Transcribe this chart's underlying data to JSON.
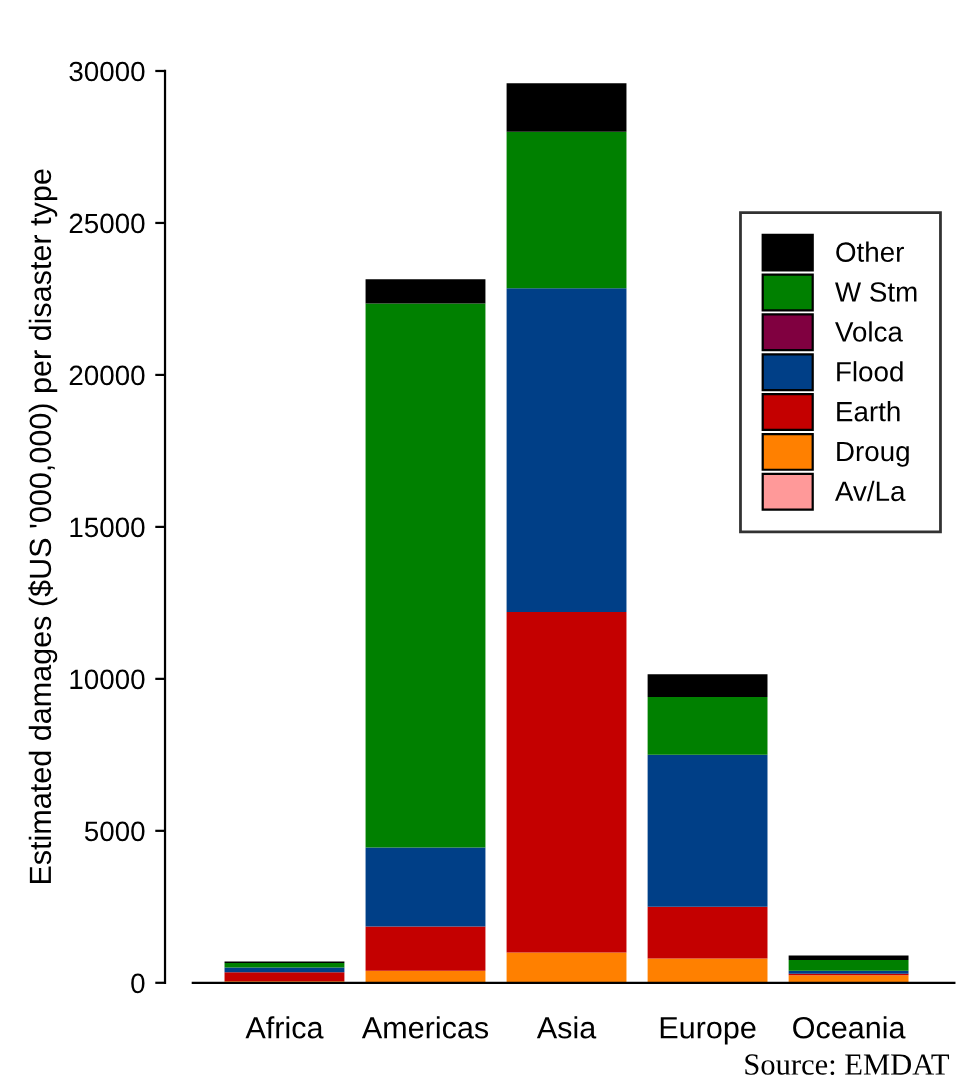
{
  "chart_data": {
    "type": "bar",
    "stacked": true,
    "ylabel": "Estimated damages ($US '000,000) per disaster type",
    "categories": [
      "Africa",
      "Americas",
      "Asia",
      "Europe",
      "Oceania"
    ],
    "series": [
      {
        "name": "Av/La",
        "color": "#ff9999",
        "values": [
          0,
          0,
          0,
          0,
          0
        ]
      },
      {
        "name": "Droug",
        "color": "#ff8000",
        "values": [
          50,
          400,
          1000,
          800,
          250
        ]
      },
      {
        "name": "Earth",
        "color": "#c40000",
        "values": [
          300,
          1450,
          11200,
          1700,
          50
        ]
      },
      {
        "name": "Flood",
        "color": "#003f87",
        "values": [
          150,
          2600,
          10650,
          5000,
          100
        ]
      },
      {
        "name": "Volca",
        "color": "#800040",
        "values": [
          0,
          0,
          0,
          0,
          0
        ]
      },
      {
        "name": "W Stm",
        "color": "#008000",
        "values": [
          150,
          17900,
          5150,
          1900,
          350
        ]
      },
      {
        "name": "Other",
        "color": "#000000",
        "values": [
          50,
          800,
          1600,
          750,
          150
        ]
      }
    ],
    "ylim": [
      0,
      30000
    ],
    "yticks": [
      0,
      5000,
      10000,
      15000,
      20000,
      25000,
      30000
    ],
    "legend": "top right",
    "grid": false,
    "annotations": [
      "Source: EMDAT"
    ]
  }
}
